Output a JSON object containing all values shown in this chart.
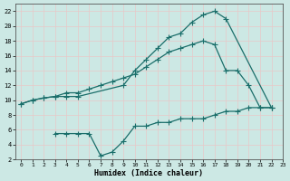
{
  "xlabel": "Humidex (Indice chaleur)",
  "background_color": "#cce8e4",
  "grid_color": "#e8c8c8",
  "line_color": "#1a6e6a",
  "xlim": [
    -0.5,
    23
  ],
  "ylim": [
    2,
    23
  ],
  "xticks": [
    0,
    1,
    2,
    3,
    4,
    5,
    6,
    7,
    8,
    9,
    10,
    11,
    12,
    13,
    14,
    15,
    16,
    17,
    18,
    19,
    20,
    21,
    22,
    23
  ],
  "yticks": [
    2,
    4,
    6,
    8,
    10,
    12,
    14,
    16,
    18,
    20,
    22
  ],
  "line1_x": [
    0,
    1,
    2,
    3,
    4,
    5,
    6,
    7,
    8,
    9,
    10,
    11,
    12,
    13,
    14,
    15,
    16,
    17,
    18,
    19,
    20,
    21,
    22
  ],
  "line1_y": [
    9.5,
    10.0,
    10.3,
    10.5,
    11.0,
    11.0,
    11.5,
    12.0,
    12.5,
    13.0,
    13.5,
    14.5,
    15.5,
    16.5,
    17.0,
    17.5,
    18.0,
    17.5,
    14.0,
    14.0,
    12.0,
    9.0,
    9.0
  ],
  "line2_x": [
    0,
    1,
    2,
    3,
    4,
    5,
    9,
    10,
    11,
    12,
    13,
    14,
    15,
    16,
    17,
    18,
    22
  ],
  "line2_y": [
    9.5,
    10.0,
    10.3,
    10.5,
    10.5,
    10.5,
    12.0,
    14.0,
    15.5,
    17.0,
    18.5,
    19.0,
    20.5,
    21.5,
    22.0,
    21.0,
    9.0
  ],
  "line3_x": [
    3,
    4,
    5,
    6,
    7,
    8,
    9,
    10,
    11,
    12,
    13,
    14,
    15,
    16,
    17,
    18,
    19,
    20,
    21,
    22
  ],
  "line3_y": [
    5.5,
    5.5,
    5.5,
    5.5,
    2.5,
    3.0,
    4.5,
    6.5,
    6.5,
    7.0,
    7.0,
    7.5,
    7.5,
    7.5,
    8.0,
    8.5,
    8.5,
    9.0,
    9.0,
    9.0
  ],
  "marker": "+",
  "markersize": 4,
  "markeredgewidth": 0.8,
  "linewidth": 0.9
}
